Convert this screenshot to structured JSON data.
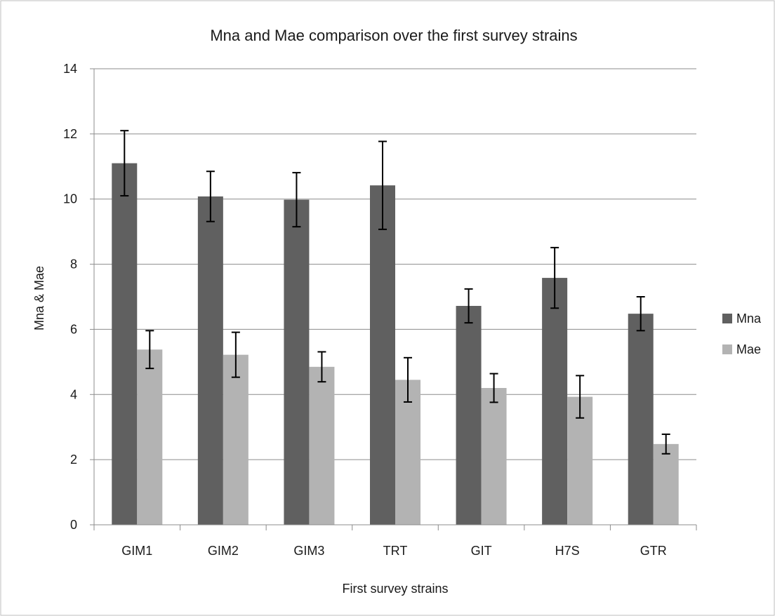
{
  "chart_data": {
    "type": "bar",
    "title": "Mna and Mae comparison  over the first survey strains",
    "xlabel": "First survey strains",
    "ylabel": "Mna & Mae",
    "ylim": [
      0,
      14
    ],
    "yticks": [
      0,
      2,
      4,
      6,
      8,
      10,
      12,
      14
    ],
    "grid": true,
    "legend_position": "right",
    "categories": [
      "GIM1",
      "GIM2",
      "GIM3",
      "TRT",
      "GIT",
      "H7S",
      "GTR"
    ],
    "series": [
      {
        "name": "Mna",
        "color": "#606060",
        "values": [
          11.1,
          10.08,
          9.98,
          10.42,
          6.72,
          7.58,
          6.48
        ],
        "error": [
          1.0,
          0.77,
          0.83,
          1.35,
          0.52,
          0.93,
          0.52
        ]
      },
      {
        "name": "Mae",
        "color": "#b3b3b3",
        "values": [
          5.38,
          5.22,
          4.85,
          4.45,
          4.2,
          3.93,
          2.48
        ],
        "error": [
          0.58,
          0.69,
          0.46,
          0.68,
          0.44,
          0.65,
          0.3
        ]
      }
    ]
  }
}
